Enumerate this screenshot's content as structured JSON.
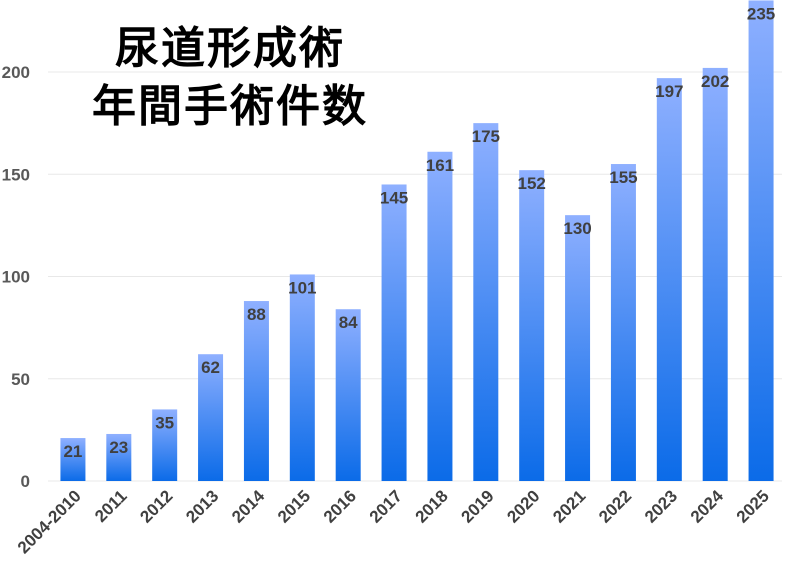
{
  "chart_data": {
    "type": "bar",
    "title_lines": [
      "尿道形成術",
      "年間手術件数"
    ],
    "xlabel": "",
    "ylabel": "",
    "categories": [
      "2004-2010",
      "2011",
      "2012",
      "2013",
      "2014",
      "2015",
      "2016",
      "2017",
      "2018",
      "2019",
      "2020",
      "2021",
      "2022",
      "2023",
      "2024",
      "2025"
    ],
    "values": [
      21,
      23,
      35,
      62,
      88,
      101,
      84,
      145,
      161,
      175,
      152,
      130,
      155,
      197,
      202,
      235
    ],
    "data_labels": [
      "21",
      "23",
      "35",
      "62",
      "88",
      "101",
      "84",
      "145",
      "161",
      "175",
      "152",
      "130",
      "155",
      "197",
      "202",
      "235"
    ],
    "yticks": [
      "0",
      "50",
      "100",
      "150",
      "200"
    ],
    "ylim": [
      0,
      235
    ],
    "grid": true,
    "legend": "none",
    "colors": {
      "bar_top": "#8fb0ff",
      "bar_bottom": "#0b6be8",
      "grid": "#e8e8e8"
    }
  }
}
